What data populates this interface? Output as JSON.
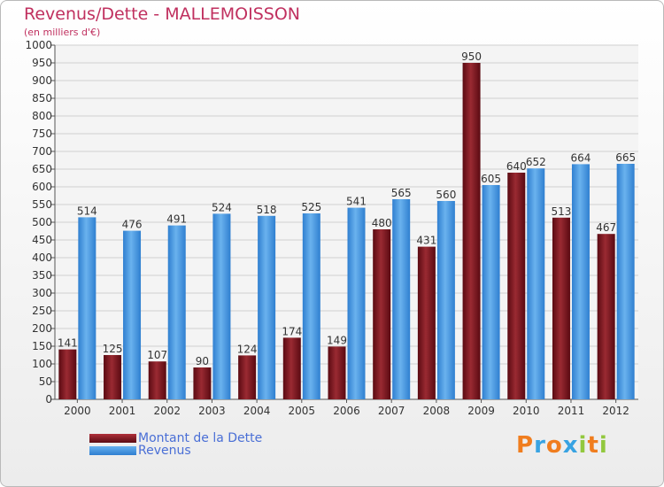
{
  "chart_data": {
    "type": "bar",
    "title": "Revenus/Dette - MALLEMOISSON",
    "subtitle": "(en milliers d'€)",
    "categories": [
      "2000",
      "2001",
      "2002",
      "2003",
      "2004",
      "2005",
      "2006",
      "2007",
      "2008",
      "2009",
      "2010",
      "2011",
      "2012"
    ],
    "series": [
      {
        "name": "Montant de la Dette",
        "color": "#7a1520",
        "values": [
          141,
          125,
          107,
          90,
          124,
          174,
          149,
          480,
          431,
          950,
          640,
          513,
          467
        ]
      },
      {
        "name": "Revenus",
        "color": "#3d8fde",
        "values": [
          514,
          476,
          491,
          524,
          518,
          525,
          541,
          565,
          560,
          605,
          652,
          664,
          665
        ]
      }
    ],
    "ylim": [
      0,
      1000
    ],
    "ytick_step": 50,
    "grid": true,
    "legend_position": "bottom-left"
  },
  "legend": {
    "items": [
      "Montant de la Dette",
      "Revenus"
    ]
  },
  "logo": {
    "letters": [
      "P",
      "r",
      "o",
      "x",
      "i",
      "t",
      "i"
    ],
    "colors": [
      "#f07d1e",
      "#38a3e2",
      "#f07d1e",
      "#38a3e2",
      "#92c83e",
      "#f07d1e",
      "#92c83e"
    ]
  }
}
